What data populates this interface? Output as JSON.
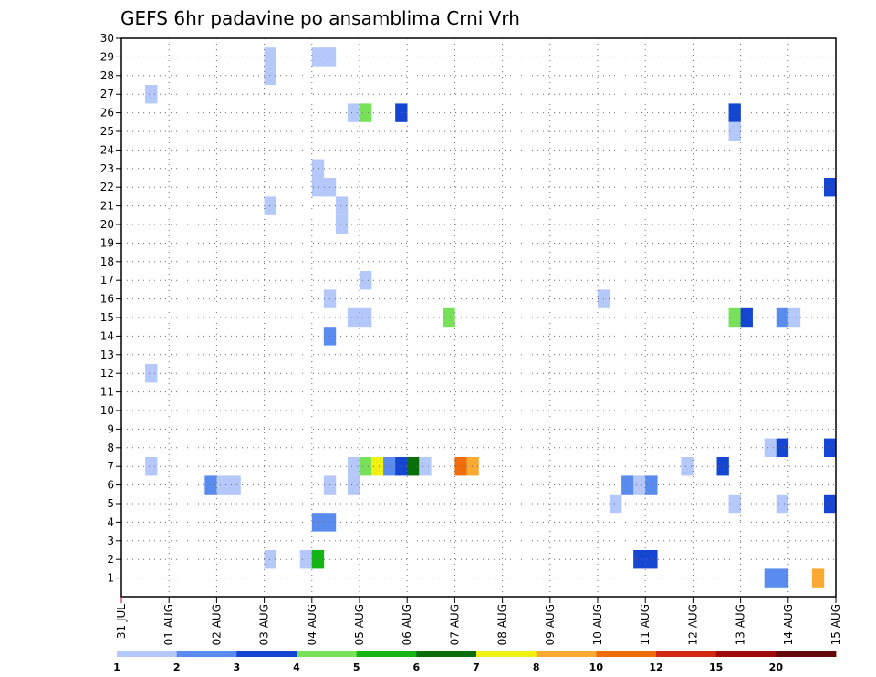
{
  "chart_data": {
    "type": "heatmap",
    "title": "GEFS 6hr padavine po ansamblima Crni Vrh",
    "xlabel": "",
    "ylabel": "",
    "x_tick_labels": [
      "31 JUL",
      "01 AUG",
      "02 AUG",
      "03 AUG",
      "04 AUG",
      "05 AUG",
      "06 AUG",
      "07 AUG",
      "08 AUG",
      "09 AUG",
      "10 AUG",
      "11 AUG",
      "12 AUG",
      "13 AUG",
      "14 AUG",
      "15 AUG"
    ],
    "y_tick_labels": [
      "1",
      "2",
      "3",
      "4",
      "5",
      "6",
      "7",
      "8",
      "9",
      "10",
      "11",
      "12",
      "13",
      "14",
      "15",
      "16",
      "17",
      "18",
      "19",
      "20",
      "21",
      "22",
      "23",
      "24",
      "25",
      "26",
      "27",
      "28",
      "29",
      "30"
    ],
    "xlim_days": [
      0,
      15
    ],
    "ylim": [
      0,
      30
    ],
    "grid": true,
    "color_legend": {
      "labels": [
        "1",
        "2",
        "3",
        "4",
        "5",
        "6",
        "7",
        "8",
        "10",
        "12",
        "15",
        "20"
      ],
      "colors": [
        "#b4c8fa",
        "#5a8cf0",
        "#1446d2",
        "#78e15a",
        "#14b414",
        "#0a6e0a",
        "#f0f014",
        "#faaa32",
        "#f06e0a",
        "#d22814",
        "#a00a0a",
        "#640a0a"
      ]
    },
    "cells": [
      {
        "day": 0.5,
        "member": 27,
        "color": "#b4c8fa"
      },
      {
        "day": 0.5,
        "member": 12,
        "color": "#b4c8fa"
      },
      {
        "day": 0.5,
        "member": 7,
        "color": "#b4c8fa"
      },
      {
        "day": 1.75,
        "member": 6,
        "color": "#5a8cf0"
      },
      {
        "day": 2.0,
        "member": 6,
        "color": "#b4c8fa"
      },
      {
        "day": 2.25,
        "member": 6,
        "color": "#b4c8fa"
      },
      {
        "day": 3.0,
        "member": 29,
        "color": "#b4c8fa"
      },
      {
        "day": 3.0,
        "member": 28,
        "color": "#b4c8fa"
      },
      {
        "day": 3.0,
        "member": 21,
        "color": "#b4c8fa"
      },
      {
        "day": 3.0,
        "member": 2,
        "color": "#b4c8fa"
      },
      {
        "day": 3.75,
        "member": 2,
        "color": "#b4c8fa"
      },
      {
        "day": 4.0,
        "member": 2,
        "color": "#14b414"
      },
      {
        "day": 4.0,
        "member": 29,
        "color": "#b4c8fa"
      },
      {
        "day": 4.25,
        "member": 29,
        "color": "#b4c8fa"
      },
      {
        "day": 4.0,
        "member": 23,
        "color": "#b4c8fa"
      },
      {
        "day": 4.0,
        "member": 22,
        "color": "#b4c8fa"
      },
      {
        "day": 4.25,
        "member": 22,
        "color": "#b4c8fa"
      },
      {
        "day": 4.5,
        "member": 21,
        "color": "#b4c8fa"
      },
      {
        "day": 4.5,
        "member": 20,
        "color": "#b4c8fa"
      },
      {
        "day": 4.25,
        "member": 16,
        "color": "#b4c8fa"
      },
      {
        "day": 4.25,
        "member": 14,
        "color": "#5a8cf0"
      },
      {
        "day": 4.0,
        "member": 4,
        "color": "#5a8cf0"
      },
      {
        "day": 4.25,
        "member": 4,
        "color": "#5a8cf0"
      },
      {
        "day": 4.25,
        "member": 6,
        "color": "#b4c8fa"
      },
      {
        "day": 4.75,
        "member": 26,
        "color": "#b4c8fa"
      },
      {
        "day": 5.0,
        "member": 26,
        "color": "#78e15a"
      },
      {
        "day": 5.75,
        "member": 26,
        "color": "#1446d2"
      },
      {
        "day": 5.0,
        "member": 17,
        "color": "#b4c8fa"
      },
      {
        "day": 4.75,
        "member": 15,
        "color": "#b4c8fa"
      },
      {
        "day": 5.0,
        "member": 15,
        "color": "#b4c8fa"
      },
      {
        "day": 4.75,
        "member": 7,
        "color": "#b4c8fa"
      },
      {
        "day": 5.0,
        "member": 7,
        "color": "#78e15a"
      },
      {
        "day": 5.25,
        "member": 7,
        "color": "#f0f014"
      },
      {
        "day": 5.5,
        "member": 7,
        "color": "#5a8cf0"
      },
      {
        "day": 5.75,
        "member": 7,
        "color": "#1446d2"
      },
      {
        "day": 6.0,
        "member": 7,
        "color": "#0a6e0a"
      },
      {
        "day": 6.25,
        "member": 7,
        "color": "#b4c8fa"
      },
      {
        "day": 4.75,
        "member": 6,
        "color": "#b4c8fa"
      },
      {
        "day": 6.75,
        "member": 15,
        "color": "#78e15a"
      },
      {
        "day": 7.0,
        "member": 7,
        "color": "#f06e0a"
      },
      {
        "day": 7.25,
        "member": 7,
        "color": "#faaa32"
      },
      {
        "day": 10.0,
        "member": 16,
        "color": "#b4c8fa"
      },
      {
        "day": 10.25,
        "member": 5,
        "color": "#b4c8fa"
      },
      {
        "day": 10.5,
        "member": 6,
        "color": "#5a8cf0"
      },
      {
        "day": 10.75,
        "member": 6,
        "color": "#b4c8fa"
      },
      {
        "day": 11.0,
        "member": 6,
        "color": "#5a8cf0"
      },
      {
        "day": 10.75,
        "member": 2,
        "color": "#1446d2"
      },
      {
        "day": 11.0,
        "member": 2,
        "color": "#1446d2"
      },
      {
        "day": 11.75,
        "member": 7,
        "color": "#b4c8fa"
      },
      {
        "day": 12.5,
        "member": 7,
        "color": "#1446d2"
      },
      {
        "day": 12.75,
        "member": 26,
        "color": "#1446d2"
      },
      {
        "day": 12.75,
        "member": 25,
        "color": "#b4c8fa"
      },
      {
        "day": 12.75,
        "member": 15,
        "color": "#78e15a"
      },
      {
        "day": 13.0,
        "member": 15,
        "color": "#1446d2"
      },
      {
        "day": 12.75,
        "member": 5,
        "color": "#b4c8fa"
      },
      {
        "day": 13.5,
        "member": 8,
        "color": "#b4c8fa"
      },
      {
        "day": 13.75,
        "member": 8,
        "color": "#1446d2"
      },
      {
        "day": 13.75,
        "member": 15,
        "color": "#5a8cf0"
      },
      {
        "day": 14.0,
        "member": 15,
        "color": "#b4c8fa"
      },
      {
        "day": 13.75,
        "member": 5,
        "color": "#b4c8fa"
      },
      {
        "day": 13.5,
        "member": 1,
        "color": "#5a8cf0"
      },
      {
        "day": 13.75,
        "member": 1,
        "color": "#5a8cf0"
      },
      {
        "day": 14.5,
        "member": 1,
        "color": "#faaa32"
      },
      {
        "day": 14.75,
        "member": 22,
        "color": "#1446d2"
      },
      {
        "day": 14.75,
        "member": 8,
        "color": "#1446d2"
      },
      {
        "day": 14.75,
        "member": 5,
        "color": "#1446d2"
      }
    ]
  }
}
